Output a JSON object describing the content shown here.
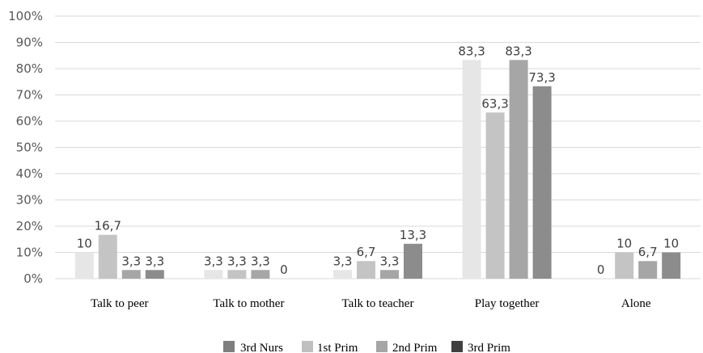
{
  "chart_data": {
    "type": "bar",
    "categories": [
      "Talk to peer",
      "Talk to mother",
      "Talk to teacher",
      "Play together",
      "Alone"
    ],
    "series": [
      {
        "name": "3rd Nurs",
        "values": [
          10,
          3.3,
          3.3,
          83.3,
          0
        ],
        "labels": [
          "10",
          "3,3",
          "3,3",
          "83,3",
          "0"
        ],
        "color": "#e6e6e6"
      },
      {
        "name": "1st Prim",
        "values": [
          16.7,
          3.3,
          6.7,
          63.3,
          10
        ],
        "labels": [
          "16,7",
          "3,3",
          "6,7",
          "63,3",
          "10"
        ],
        "color": "#c4c4c4"
      },
      {
        "name": "2nd Prim",
        "values": [
          3.3,
          3.3,
          3.3,
          83.3,
          6.7
        ],
        "labels": [
          "3,3",
          "3,3",
          "3,3",
          "83,3",
          "6,7"
        ],
        "color": "#a6a6a6"
      },
      {
        "name": "3rd Prim",
        "values": [
          3.3,
          0,
          13.3,
          73.3,
          10
        ],
        "labels": [
          "3,3",
          "0",
          "13,3",
          "73,3",
          "10"
        ],
        "color": "#8c8c8c"
      }
    ],
    "legend_swatch_colors": [
      "#7f7f7f",
      "#bfbfbf",
      "#a6a6a6",
      "#404040"
    ],
    "yticks": [
      "0%",
      "10%",
      "20%",
      "30%",
      "40%",
      "50%",
      "60%",
      "70%",
      "80%",
      "90%",
      "100%"
    ],
    "ylim": [
      0,
      100
    ],
    "grid": true,
    "legend_position": "bottom",
    "gridline_color": "#d9d9d9"
  }
}
